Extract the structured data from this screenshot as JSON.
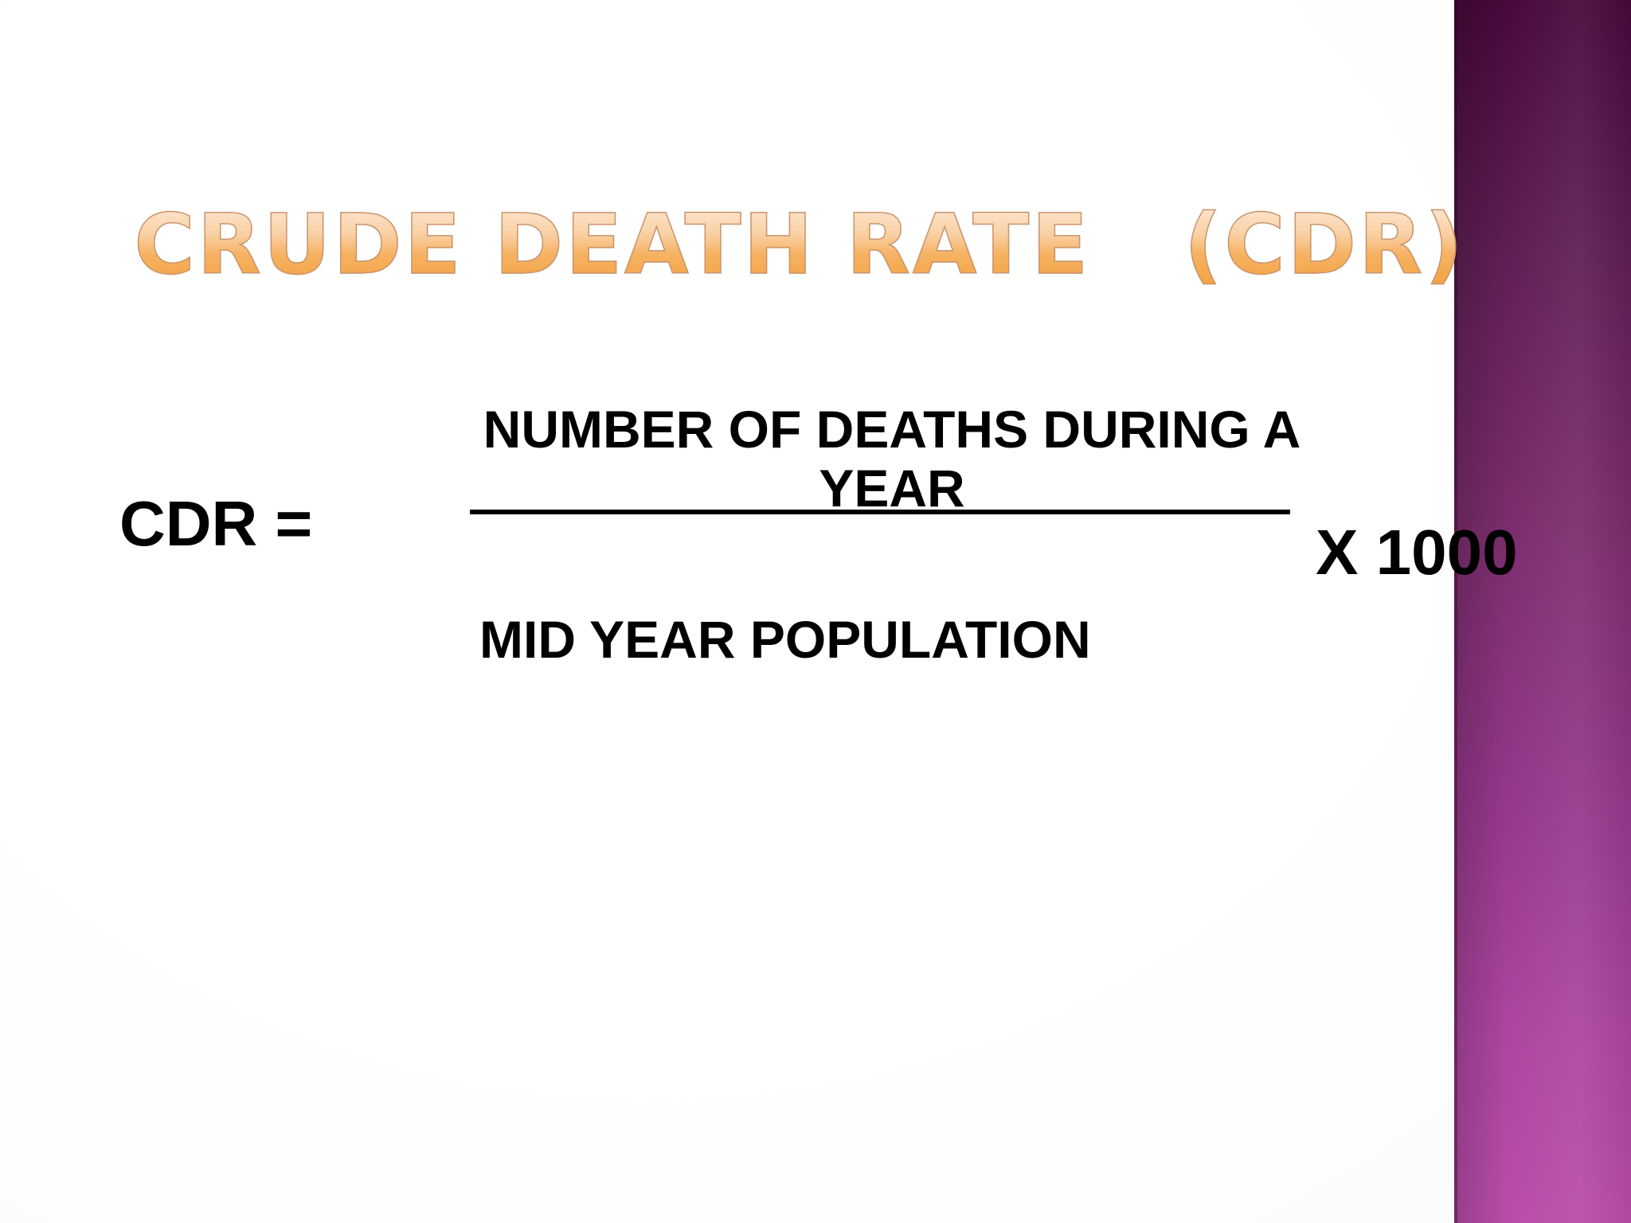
{
  "slide": {
    "title": "CRUDE DEATH RATE   (CDR)",
    "formula": {
      "lhs": "CDR =",
      "numerator": "NUMBER OF DEATHS DURING A YEAR",
      "denominator": "MID YEAR POPULATION",
      "multiplier": "X 1000"
    }
  },
  "colors": {
    "title_gradient_top": "#fde8d3",
    "title_gradient_bottom": "#f3a242",
    "formula_text": "#000000",
    "side_bar_top": "#47093a",
    "side_bar_bottom": "#b84da8",
    "background": "#ffffff"
  }
}
